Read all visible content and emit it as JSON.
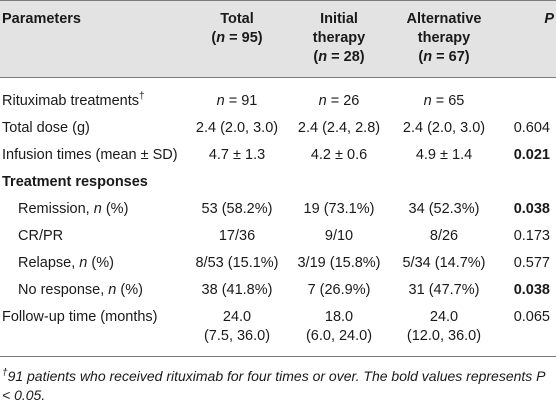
{
  "headers": {
    "parameters": "Parameters",
    "total_l1": "Total",
    "total_l2_pre": "(",
    "total_l2_var": "n",
    "total_l2_post": " = 95)",
    "initial_l1": "Initial",
    "initial_l2": "therapy",
    "initial_l3_pre": "(",
    "initial_l3_var": "n",
    "initial_l3_post": " = 28)",
    "alt_l1": "Alternative",
    "alt_l2": "therapy",
    "alt_l3_pre": "(",
    "alt_l3_var": "n",
    "alt_l3_post": " = 67)",
    "p": "P"
  },
  "rows": {
    "rituximab": {
      "label": "Rituximab treatments",
      "dagger": "†",
      "n_var": "n",
      "total": " = 91",
      "initial": " = 26",
      "alt": " = 65",
      "p": ""
    },
    "total_dose": {
      "label": "Total dose (g)",
      "total": "2.4 (2.0, 3.0)",
      "initial": "2.4 (2.4, 2.8)",
      "alt": "2.4 (2.0, 3.0)",
      "p": "0.604"
    },
    "infusion": {
      "label": "Infusion times (mean ± SD)",
      "total": "4.7 ± 1.3",
      "initial": "4.2 ± 0.6",
      "alt": "4.9 ± 1.4",
      "p": "0.021"
    },
    "section": {
      "label": "Treatment responses"
    },
    "remission": {
      "label_pre": "Remission, ",
      "label_var": "n",
      "label_post": " (%)",
      "total": "53 (58.2%)",
      "initial": "19 (73.1%)",
      "alt": "34 (52.3%)",
      "p": "0.038"
    },
    "crpr": {
      "label": "CR/PR",
      "total": "17/36",
      "initial": "9/10",
      "alt": "8/26",
      "p": "0.173"
    },
    "relapse": {
      "label_pre": "Relapse, ",
      "label_var": "n",
      "label_post": " (%)",
      "total": "8/53 (15.1%)",
      "initial": "3/19 (15.8%)",
      "alt": "5/34 (14.7%)",
      "p": "0.577"
    },
    "no_response": {
      "label_pre": "No response, ",
      "label_var": "n",
      "label_post": " (%)",
      "total": "38 (41.8%)",
      "initial": "7 (26.9%)",
      "alt": "31 (47.7%)",
      "p": "0.038"
    },
    "followup": {
      "label": "Follow-up time (months)",
      "total_l1": "24.0",
      "total_l2": "(7.5, 36.0)",
      "initial_l1": "18.0",
      "initial_l2": "(6.0, 24.0)",
      "alt_l1": "24.0",
      "alt_l2": "(12.0, 36.0)",
      "p": "0.065"
    }
  },
  "footnote": {
    "dagger": "†",
    "text": "91 patients who received rituximab for four times or over. The bold values represents P < 0.05."
  }
}
